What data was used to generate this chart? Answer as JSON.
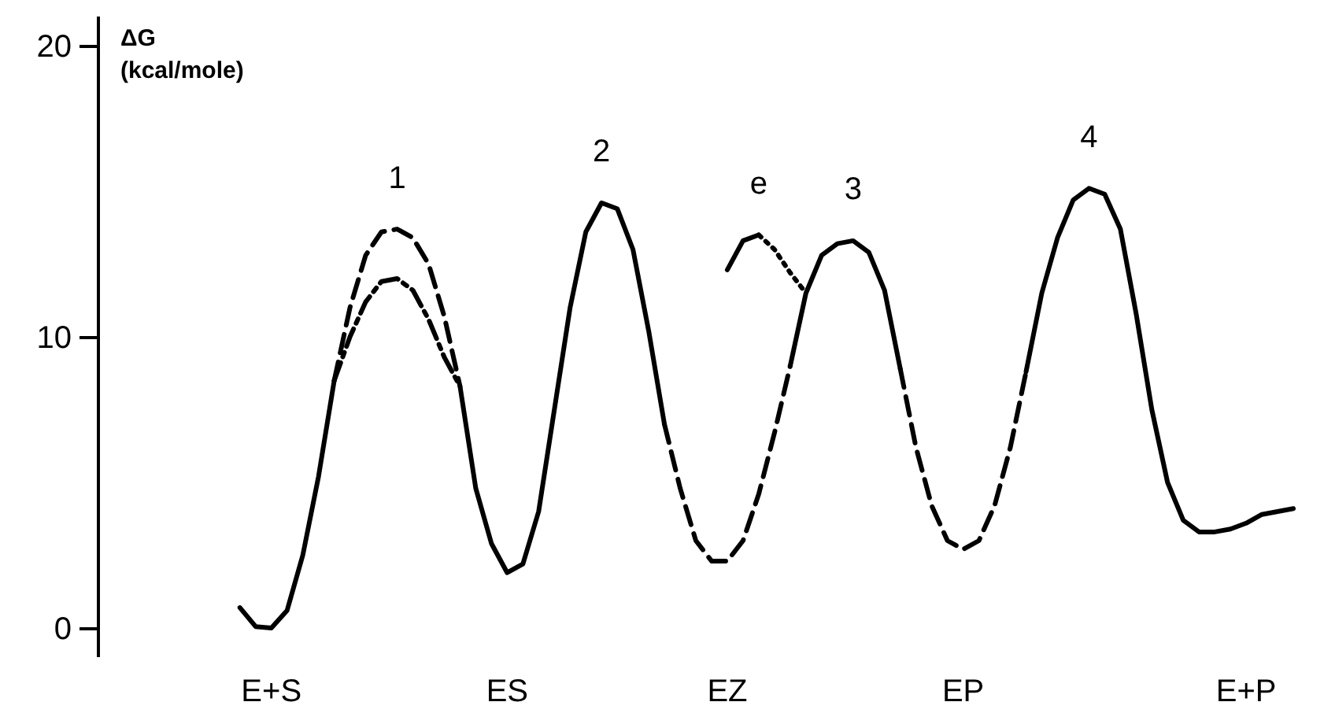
{
  "chart_data": {
    "type": "line",
    "ylabel": "ΔG\n(kcal/mole)",
    "ylim": [
      -1,
      21
    ],
    "yticks": [
      0,
      10,
      20
    ],
    "categories": [
      null,
      null,
      "E+S",
      null,
      null,
      null,
      null,
      null,
      null,
      null,
      null,
      null,
      null,
      null,
      null,
      null,
      null,
      "ES",
      null,
      null,
      null,
      null,
      null,
      null,
      null,
      null,
      null,
      null,
      null,
      null,
      null,
      "EZ",
      null,
      null,
      null,
      null,
      null,
      null,
      null,
      null,
      null,
      null,
      null,
      null,
      null,
      null,
      "EP",
      null,
      null,
      null,
      null,
      null,
      null,
      null,
      null,
      null,
      null,
      null,
      null,
      null,
      null,
      null,
      null,
      null,
      "E+P",
      null,
      null,
      null
    ],
    "series": [
      {
        "color": "#000000",
        "line_style": "solid",
        "values": [
          0.7,
          0.05,
          0.0,
          0.6,
          2.5,
          5.2,
          8.5,
          null,
          null,
          null,
          null,
          null,
          null,
          null,
          8.3,
          4.8,
          2.9,
          1.9,
          2.2,
          4.0,
          7.5,
          11.0,
          13.6,
          14.6,
          14.4,
          13.0,
          10.2,
          7.0,
          null,
          null,
          null,
          null,
          null,
          null,
          null,
          9.0,
          11.5,
          12.8,
          13.2,
          13.3,
          12.9,
          11.6,
          8.9,
          null,
          null,
          null,
          null,
          null,
          null,
          null,
          8.8,
          11.5,
          13.4,
          14.7,
          15.1,
          14.9,
          13.7,
          10.8,
          7.5,
          5.0,
          3.7,
          3.3,
          3.3,
          3.4,
          3.6,
          3.9,
          4.0,
          4.1
        ]
      },
      {
        "color": "#000000",
        "line_style": "dashed",
        "values": [
          null,
          null,
          null,
          null,
          null,
          null,
          8.5,
          11.0,
          12.8,
          13.6,
          13.7,
          13.4,
          12.5,
          10.7,
          8.3,
          null,
          null,
          null,
          null,
          null,
          null,
          null,
          null,
          null,
          null,
          null,
          null,
          7.0,
          4.8,
          3.0,
          2.3,
          2.3,
          3.0,
          4.6,
          6.7,
          9.0,
          null,
          null,
          null,
          null,
          null,
          null,
          8.9,
          6.2,
          4.2,
          3.0,
          2.7,
          3.0,
          4.2,
          6.2,
          8.8,
          null,
          null,
          null,
          null,
          null,
          null,
          null,
          null,
          null,
          null,
          null,
          null,
          null,
          null,
          null,
          null,
          null
        ]
      },
      {
        "color": "#000000",
        "line_style": "dashdot",
        "values": [
          null,
          null,
          null,
          null,
          null,
          null,
          8.5,
          10.0,
          11.2,
          11.9,
          12.0,
          11.6,
          10.6,
          9.3,
          8.3,
          null,
          null,
          null,
          null,
          null,
          null,
          null,
          null,
          null,
          null,
          null,
          null,
          null,
          null,
          null,
          null,
          null,
          null,
          null,
          null,
          null,
          null,
          null,
          null,
          null,
          null,
          null,
          null,
          null,
          null,
          null,
          null,
          null,
          null,
          null,
          null,
          null,
          null,
          null,
          null,
          null,
          null,
          null,
          null,
          null,
          null,
          null,
          null,
          null,
          null,
          null,
          null,
          null
        ]
      },
      {
        "color": "#000000",
        "line_style": "solid",
        "values": [
          null,
          null,
          null,
          null,
          null,
          null,
          null,
          null,
          null,
          null,
          null,
          null,
          null,
          null,
          null,
          null,
          null,
          null,
          null,
          null,
          null,
          null,
          null,
          null,
          null,
          null,
          null,
          null,
          null,
          null,
          null,
          12.3,
          13.3,
          13.5,
          null,
          null,
          null,
          null,
          null,
          null,
          null,
          null,
          null,
          null,
          null,
          null,
          null,
          null,
          null,
          null,
          null,
          null,
          null,
          null,
          null,
          null,
          null,
          null,
          null,
          null,
          null,
          null,
          null,
          null,
          null,
          null,
          null,
          null
        ]
      },
      {
        "color": "#000000",
        "line_style": "dotted",
        "values": [
          null,
          null,
          null,
          null,
          null,
          null,
          null,
          null,
          null,
          null,
          null,
          null,
          null,
          null,
          null,
          null,
          null,
          null,
          null,
          null,
          null,
          null,
          null,
          null,
          null,
          null,
          null,
          null,
          null,
          null,
          null,
          null,
          null,
          13.5,
          13.0,
          12.2,
          11.5,
          null,
          null,
          null,
          null,
          null,
          null,
          null,
          null,
          null,
          null,
          null,
          null,
          null,
          null,
          null,
          null,
          null,
          null,
          null,
          null,
          null,
          null,
          null,
          null,
          null,
          null,
          null,
          null,
          null,
          null,
          null
        ]
      }
    ],
    "annotations": [
      "1",
      "2",
      "e",
      "3",
      "4"
    ]
  }
}
